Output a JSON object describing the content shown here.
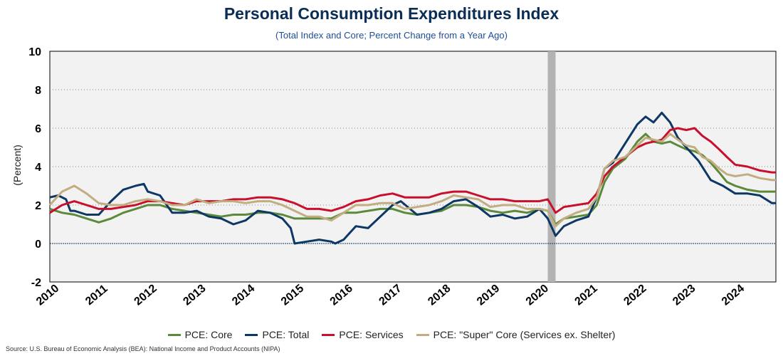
{
  "page": {
    "title": "Personal Consumption Expenditures Index",
    "subtitle": "(Total Index and Core; Percent Change from a Year Ago)",
    "source": "Source: U.S. Bureau of Economic Analysis (BEA): National Income and Product Accounts (NIPA)"
  },
  "chart_data": {
    "type": "line",
    "title": "Personal Consumption Expenditures Index",
    "subtitle": "(Total Index and Core; Percent Change from a Year Ago)",
    "xlabel": "",
    "ylabel": "(Percent)",
    "xlim": [
      2010.0,
      2024.83
    ],
    "ylim": [
      -2,
      10
    ],
    "yticks": [
      -2,
      0,
      2,
      4,
      6,
      8,
      10
    ],
    "xticks": [
      "2010",
      "2011",
      "2012",
      "2013",
      "2014",
      "2015",
      "2016",
      "2017",
      "2018",
      "2019",
      "2020",
      "2021",
      "2022",
      "2023",
      "2024"
    ],
    "grid": "horizontal dotted",
    "legend_position": "bottom",
    "recession_band": [
      2020.17,
      2020.33
    ],
    "zero_line": 0,
    "series": [
      {
        "name": "PCE: Core",
        "color": "#5b8a3a",
        "x": [
          2010.0,
          2010.25,
          2010.5,
          2010.75,
          2011.0,
          2011.25,
          2011.5,
          2011.75,
          2012.0,
          2012.25,
          2012.5,
          2012.75,
          2013.0,
          2013.25,
          2013.5,
          2013.75,
          2014.0,
          2014.25,
          2014.5,
          2014.75,
          2015.0,
          2015.25,
          2015.5,
          2015.75,
          2016.0,
          2016.25,
          2016.5,
          2016.75,
          2017.0,
          2017.25,
          2017.5,
          2017.75,
          2018.0,
          2018.25,
          2018.5,
          2018.75,
          2019.0,
          2019.25,
          2019.5,
          2019.75,
          2020.0,
          2020.17,
          2020.33,
          2020.5,
          2020.75,
          2021.0,
          2021.17,
          2021.33,
          2021.5,
          2021.75,
          2022.0,
          2022.17,
          2022.33,
          2022.5,
          2022.67,
          2022.83,
          2023.0,
          2023.17,
          2023.33,
          2023.5,
          2023.67,
          2023.83,
          2024.0,
          2024.25,
          2024.5,
          2024.75,
          2024.83
        ],
        "values": [
          1.8,
          1.6,
          1.5,
          1.3,
          1.1,
          1.3,
          1.6,
          1.8,
          2.0,
          2.0,
          1.8,
          1.7,
          1.6,
          1.5,
          1.4,
          1.5,
          1.5,
          1.6,
          1.6,
          1.5,
          1.3,
          1.3,
          1.3,
          1.3,
          1.6,
          1.6,
          1.7,
          1.8,
          1.8,
          1.6,
          1.5,
          1.6,
          1.7,
          2.0,
          2.0,
          1.9,
          1.7,
          1.6,
          1.7,
          1.6,
          1.8,
          1.7,
          1.0,
          1.3,
          1.4,
          1.5,
          2.0,
          3.2,
          3.9,
          4.4,
          5.3,
          5.7,
          5.3,
          5.2,
          5.3,
          5.1,
          4.9,
          4.8,
          4.6,
          4.2,
          3.7,
          3.2,
          3.0,
          2.8,
          2.7,
          2.7,
          2.7
        ]
      },
      {
        "name": "PCE: Total",
        "color": "#0d3764",
        "x": [
          2010.0,
          2010.17,
          2010.33,
          2010.42,
          2010.5,
          2010.75,
          2011.0,
          2011.25,
          2011.5,
          2011.75,
          2011.92,
          2012.0,
          2012.25,
          2012.5,
          2012.75,
          2013.0,
          2013.25,
          2013.5,
          2013.75,
          2014.0,
          2014.25,
          2014.5,
          2014.75,
          2014.92,
          2015.0,
          2015.25,
          2015.5,
          2015.75,
          2015.83,
          2016.0,
          2016.25,
          2016.5,
          2016.75,
          2017.0,
          2017.17,
          2017.5,
          2017.75,
          2018.0,
          2018.25,
          2018.5,
          2018.75,
          2019.0,
          2019.25,
          2019.5,
          2019.75,
          2020.0,
          2020.17,
          2020.33,
          2020.5,
          2020.75,
          2021.0,
          2021.17,
          2021.33,
          2021.5,
          2021.75,
          2022.0,
          2022.17,
          2022.33,
          2022.5,
          2022.67,
          2022.83,
          2023.0,
          2023.25,
          2023.5,
          2023.75,
          2024.0,
          2024.25,
          2024.5,
          2024.75,
          2024.83
        ],
        "values": [
          2.4,
          2.5,
          2.3,
          1.7,
          1.7,
          1.5,
          1.5,
          2.2,
          2.8,
          3.0,
          3.1,
          2.7,
          2.5,
          1.6,
          1.6,
          1.7,
          1.4,
          1.3,
          1.0,
          1.2,
          1.7,
          1.6,
          1.3,
          0.8,
          0.0,
          0.1,
          0.2,
          0.1,
          0.0,
          0.2,
          0.9,
          0.8,
          1.4,
          2.0,
          2.2,
          1.5,
          1.6,
          1.8,
          2.2,
          2.3,
          1.9,
          1.4,
          1.5,
          1.3,
          1.4,
          1.8,
          1.3,
          0.4,
          0.9,
          1.2,
          1.4,
          2.4,
          3.9,
          4.2,
          5.2,
          6.2,
          6.6,
          6.3,
          6.8,
          6.3,
          5.5,
          5.0,
          4.3,
          3.3,
          3.0,
          2.6,
          2.6,
          2.5,
          2.1,
          2.1
        ]
      },
      {
        "name": "PCE: Services",
        "color": "#c8102e",
        "x": [
          2010.0,
          2010.25,
          2010.5,
          2010.75,
          2011.0,
          2011.25,
          2011.5,
          2011.75,
          2012.0,
          2012.25,
          2012.5,
          2012.75,
          2013.0,
          2013.25,
          2013.5,
          2013.75,
          2014.0,
          2014.25,
          2014.5,
          2014.75,
          2015.0,
          2015.25,
          2015.5,
          2015.75,
          2016.0,
          2016.25,
          2016.5,
          2016.75,
          2017.0,
          2017.25,
          2017.5,
          2017.75,
          2018.0,
          2018.25,
          2018.5,
          2018.75,
          2019.0,
          2019.25,
          2019.5,
          2019.75,
          2020.0,
          2020.17,
          2020.33,
          2020.5,
          2020.75,
          2021.0,
          2021.17,
          2021.33,
          2021.5,
          2021.75,
          2022.0,
          2022.17,
          2022.33,
          2022.5,
          2022.67,
          2022.83,
          2023.0,
          2023.17,
          2023.33,
          2023.5,
          2023.67,
          2023.83,
          2024.0,
          2024.25,
          2024.5,
          2024.75,
          2024.83
        ],
        "values": [
          1.6,
          2.0,
          2.2,
          2.0,
          1.8,
          1.8,
          1.9,
          2.0,
          2.2,
          2.2,
          2.1,
          2.0,
          2.2,
          2.2,
          2.2,
          2.3,
          2.3,
          2.4,
          2.4,
          2.3,
          2.1,
          1.8,
          1.8,
          1.7,
          1.9,
          2.2,
          2.3,
          2.5,
          2.6,
          2.4,
          2.4,
          2.4,
          2.6,
          2.7,
          2.7,
          2.5,
          2.3,
          2.3,
          2.2,
          2.2,
          2.2,
          2.3,
          1.6,
          1.9,
          2.0,
          2.1,
          2.6,
          3.5,
          4.0,
          4.5,
          5.0,
          5.2,
          5.3,
          5.4,
          5.9,
          6.0,
          5.9,
          6.0,
          5.6,
          5.3,
          4.9,
          4.5,
          4.1,
          4.0,
          3.8,
          3.7,
          3.7
        ]
      },
      {
        "name": "PCE: \"Super\" Core (Services ex. Shelter)",
        "color": "#c2ad81",
        "x": [
          2010.0,
          2010.25,
          2010.5,
          2010.75,
          2011.0,
          2011.25,
          2011.5,
          2011.75,
          2012.0,
          2012.25,
          2012.5,
          2012.75,
          2013.0,
          2013.25,
          2013.5,
          2013.75,
          2014.0,
          2014.25,
          2014.5,
          2014.75,
          2015.0,
          2015.25,
          2015.5,
          2015.75,
          2016.0,
          2016.25,
          2016.5,
          2016.75,
          2017.0,
          2017.25,
          2017.5,
          2017.75,
          2018.0,
          2018.25,
          2018.5,
          2018.75,
          2019.0,
          2019.25,
          2019.5,
          2019.75,
          2020.0,
          2020.17,
          2020.33,
          2020.5,
          2020.75,
          2021.0,
          2021.17,
          2021.33,
          2021.5,
          2021.75,
          2022.0,
          2022.17,
          2022.33,
          2022.5,
          2022.67,
          2022.83,
          2023.0,
          2023.17,
          2023.33,
          2023.5,
          2023.67,
          2023.83,
          2024.0,
          2024.25,
          2024.5,
          2024.75,
          2024.83
        ],
        "values": [
          2.0,
          2.7,
          3.0,
          2.6,
          2.1,
          2.0,
          2.0,
          2.2,
          2.3,
          2.2,
          2.0,
          2.0,
          2.3,
          2.1,
          2.2,
          2.2,
          2.1,
          2.2,
          2.2,
          2.0,
          1.7,
          1.4,
          1.4,
          1.2,
          1.6,
          2.0,
          2.0,
          2.1,
          2.1,
          1.8,
          1.9,
          2.0,
          2.2,
          2.5,
          2.4,
          2.3,
          1.9,
          2.0,
          2.0,
          1.8,
          1.8,
          1.7,
          0.9,
          1.3,
          1.6,
          1.8,
          2.4,
          3.9,
          4.3,
          4.5,
          5.1,
          5.5,
          5.4,
          5.3,
          5.7,
          5.4,
          5.1,
          5.0,
          4.5,
          4.3,
          3.9,
          3.6,
          3.5,
          3.6,
          3.4,
          3.3,
          3.3
        ]
      }
    ]
  }
}
